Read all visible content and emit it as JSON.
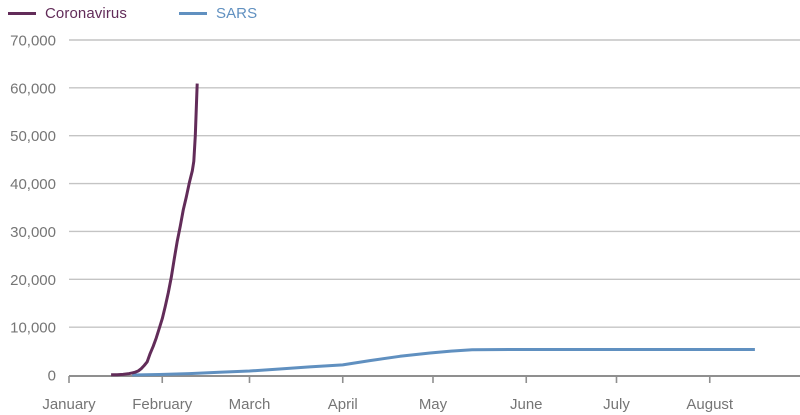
{
  "page": {
    "background": "#ffffff"
  },
  "legend": {
    "items": [
      {
        "label": "Coronavirus",
        "color": "#622c59"
      },
      {
        "label": "SARS",
        "color": "#6090c0"
      }
    ]
  },
  "chart_data": {
    "type": "line",
    "title": "",
    "xlabel": "",
    "ylabel": "",
    "x_axis_months": [
      "January",
      "February",
      "March",
      "April",
      "May",
      "June",
      "July",
      "August"
    ],
    "x_month_day_offsets": [
      0,
      31,
      60,
      91,
      121,
      152,
      182,
      213
    ],
    "x_total_days": 243,
    "y_ticks": [
      0,
      10000,
      20000,
      30000,
      40000,
      50000,
      60000,
      70000
    ],
    "y_tick_labels": [
      "0",
      "10,000",
      "20,000",
      "30,000",
      "40,000",
      "50,000",
      "60,000",
      "70,000"
    ],
    "ylim": [
      0,
      70000
    ],
    "grid": "horizontal-only",
    "legend_position": "top-left",
    "axis_color": "#8f8f8f",
    "grid_color": "#c4c4c4",
    "label_color": "#757575",
    "series": [
      {
        "name": "SARS",
        "color": "#6090c0",
        "stroke_width": 3,
        "points": [
          [
            21,
            0
          ],
          [
            30,
            100
          ],
          [
            40,
            300
          ],
          [
            50,
            560
          ],
          [
            60,
            830
          ],
          [
            70,
            1250
          ],
          [
            80,
            1700
          ],
          [
            91,
            2100
          ],
          [
            100,
            3000
          ],
          [
            110,
            3900
          ],
          [
            120,
            4600
          ],
          [
            127,
            5000
          ],
          [
            134,
            5280
          ],
          [
            150,
            5330
          ],
          [
            182,
            5330
          ],
          [
            213,
            5330
          ],
          [
            228,
            5330
          ]
        ]
      },
      {
        "name": "Coronavirus",
        "color": "#622c59",
        "stroke_width": 3,
        "points": [
          [
            14,
            40
          ],
          [
            16,
            60
          ],
          [
            18,
            120
          ],
          [
            19,
            200
          ],
          [
            20,
            290
          ],
          [
            21,
            440
          ],
          [
            22,
            580
          ],
          [
            23,
            840
          ],
          [
            24,
            1320
          ],
          [
            25,
            1980
          ],
          [
            26,
            2750
          ],
          [
            27,
            4520
          ],
          [
            28,
            5990
          ],
          [
            29,
            7710
          ],
          [
            30,
            9690
          ],
          [
            31,
            11790
          ],
          [
            32,
            14380
          ],
          [
            33,
            17200
          ],
          [
            34,
            20430
          ],
          [
            35,
            24320
          ],
          [
            36,
            28020
          ],
          [
            37,
            31140
          ],
          [
            38,
            34540
          ],
          [
            39,
            37200
          ],
          [
            40,
            40150
          ],
          [
            41,
            42650
          ],
          [
            41.5,
            44650
          ],
          [
            42,
            50000
          ],
          [
            42.6,
            60900
          ]
        ]
      }
    ]
  }
}
